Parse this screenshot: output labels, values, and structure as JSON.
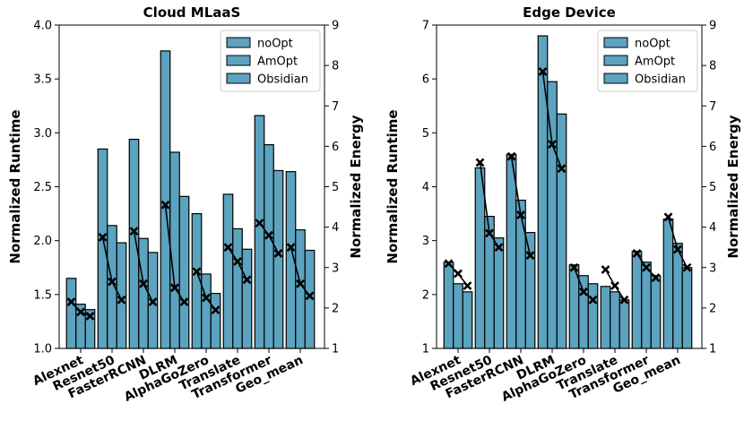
{
  "chart_data": [
    {
      "type": "bar",
      "title": "Cloud MLaaS",
      "categories": [
        "Alexnet",
        "Resnet50",
        "FasterRCNN",
        "DLRM",
        "AlphaGoZero",
        "Translate",
        "Transformer",
        "Geo_mean"
      ],
      "series": [
        {
          "name": "noOpt",
          "values": [
            1.65,
            2.85,
            2.94,
            3.76,
            2.25,
            2.43,
            3.16,
            2.64
          ]
        },
        {
          "name": "AmOpt",
          "values": [
            1.41,
            2.14,
            2.02,
            2.82,
            1.69,
            2.11,
            2.89,
            2.1
          ]
        },
        {
          "name": "Obsidian",
          "values": [
            1.36,
            1.98,
            1.89,
            2.41,
            1.51,
            1.92,
            2.65,
            1.91
          ]
        }
      ],
      "energy_series": {
        "name": "Normalized Energy",
        "values": [
          [
            2.15,
            1.9,
            1.8
          ],
          [
            3.75,
            2.65,
            2.2
          ],
          [
            3.9,
            2.6,
            2.15
          ],
          [
            4.55,
            2.5,
            2.15
          ],
          [
            2.9,
            2.25,
            1.95
          ],
          [
            3.5,
            3.15,
            2.7
          ],
          [
            4.1,
            3.8,
            3.35
          ],
          [
            3.5,
            2.6,
            2.3
          ]
        ]
      },
      "ylabel": "Normalized Runtime",
      "ylabel_right": "Normalized Energy",
      "ylim": [
        1.0,
        4.0
      ],
      "ylim_right": [
        1,
        9
      ],
      "yticks": [
        "1.0",
        "1.5",
        "2.0",
        "2.5",
        "3.0",
        "3.5",
        "4.0"
      ],
      "yticks_right": [
        "1",
        "2",
        "3",
        "4",
        "5",
        "6",
        "7",
        "8",
        "9"
      ],
      "legend": [
        "noOpt",
        "AmOpt",
        "Obsidian"
      ],
      "legend_position": "top-right"
    },
    {
      "type": "bar",
      "title": "Edge Device",
      "categories": [
        "Alexnet",
        "Resnet50",
        "FasterRCNN",
        "DLRM",
        "AlphaGoZero",
        "Translate",
        "Transformer",
        "Geo_mean"
      ],
      "series": [
        {
          "name": "noOpt",
          "values": [
            2.6,
            4.35,
            4.6,
            6.8,
            2.55,
            2.15,
            2.8,
            3.4
          ]
        },
        {
          "name": "AmOpt",
          "values": [
            2.2,
            3.45,
            3.75,
            5.95,
            2.35,
            2.05,
            2.6,
            2.95
          ]
        },
        {
          "name": "Obsidian",
          "values": [
            2.05,
            3.05,
            3.15,
            5.35,
            2.2,
            1.9,
            2.35,
            2.5
          ]
        }
      ],
      "energy_series": {
        "name": "Normalized Energy",
        "values": [
          [
            3.1,
            2.85,
            2.55
          ],
          [
            5.6,
            3.85,
            3.5
          ],
          [
            5.75,
            4.3,
            3.3
          ],
          [
            7.85,
            6.05,
            5.45
          ],
          [
            3.0,
            2.4,
            2.2
          ],
          [
            2.95,
            2.55,
            2.2
          ],
          [
            3.35,
            3.0,
            2.75
          ],
          [
            4.25,
            3.45,
            3.0
          ]
        ]
      },
      "ylabel": "Normalized Runtime",
      "ylabel_right": "Normalized Energy",
      "ylim": [
        1,
        7
      ],
      "ylim_right": [
        1,
        9
      ],
      "yticks": [
        "1",
        "2",
        "3",
        "4",
        "5",
        "6",
        "7"
      ],
      "yticks_right": [
        "1",
        "2",
        "3",
        "4",
        "5",
        "6",
        "7",
        "8",
        "9"
      ],
      "legend": [
        "noOpt",
        "AmOpt",
        "Obsidian"
      ],
      "legend_position": "top-right"
    }
  ],
  "colors": {
    "bar_fill": "#5ca3bf",
    "bar_edge": "#000000",
    "energy_line": "#000000"
  }
}
